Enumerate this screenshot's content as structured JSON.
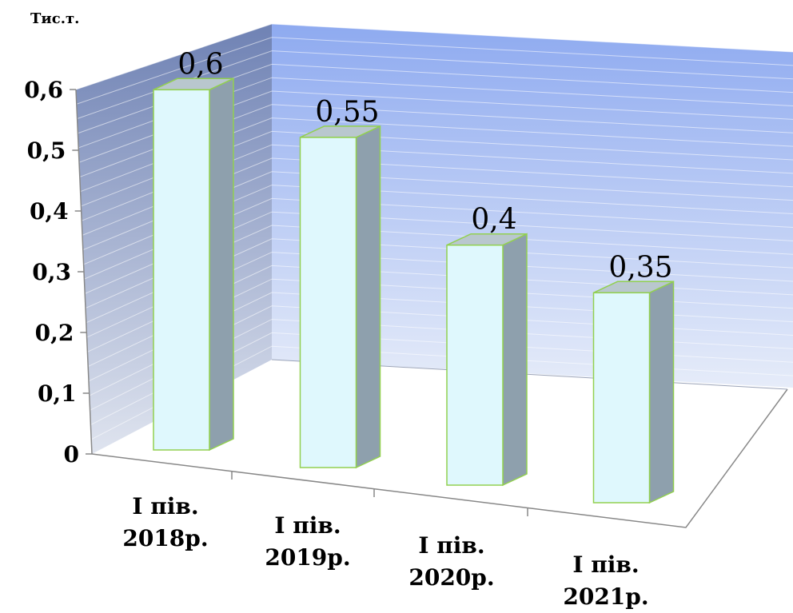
{
  "chart_data": {
    "type": "bar",
    "style": "3d-column",
    "unit_label": "Тис.т.",
    "categories": [
      [
        "І пів.",
        "2018р."
      ],
      [
        "І пів.",
        "2019р."
      ],
      [
        "І пів.",
        "2020р."
      ],
      [
        "І пів.",
        "2021р."
      ]
    ],
    "values": [
      0.6,
      0.55,
      0.4,
      0.35
    ],
    "data_labels": [
      "0,6",
      "0,55",
      "0,4",
      "0,35"
    ],
    "y_ticks": [
      "0",
      "0,1",
      "0,2",
      "0,3",
      "0,4",
      "0,5",
      "0,6"
    ],
    "ylim": [
      0,
      0.6
    ],
    "grid": true,
    "colors": {
      "bar_front": "#dff8fd",
      "bar_side": "#8ea0ad",
      "bar_top": "#b9c7ce",
      "bar_outline": "#92d050",
      "back_wall_top": "#8eaaf0",
      "back_wall_bottom": "#e6ecf9",
      "side_wall_top": "#6f82b4",
      "side_wall_bottom": "#dfe4ef"
    }
  }
}
